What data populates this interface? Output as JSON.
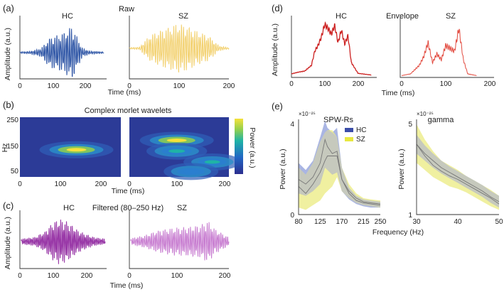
{
  "panel_labels": [
    "(a)",
    "(b)",
    "(c)",
    "(d)",
    "(e)"
  ],
  "colors": {
    "hc_raw": "#2f56a6",
    "sz_raw": "#f2cf6a",
    "hc_env": "#cc2020",
    "sz_env": "#e24a3f",
    "filtered": "#9a3aa8",
    "hc_band": "#9aa8de",
    "sz_band": "#ecec88",
    "overlap": "#c3c6c1",
    "mean_line": "#777777"
  },
  "chart_data": [
    {
      "id": "a",
      "type": "line",
      "title": "Raw",
      "ylabel": "Amplitude (a.u.)",
      "xlabel": "Time (ms)",
      "panels": [
        {
          "label": "HC",
          "xticks": [
            0,
            100,
            200
          ],
          "xlim": [
            0,
            250
          ],
          "series": [
            {
              "name": "HC",
              "color": "#2f56a6",
              "x": [
                0,
                30,
                60,
                75,
                90,
                110,
                130,
                150,
                165,
                180,
                200,
                240
              ],
              "amp": [
                0.03,
                0.05,
                0.15,
                0.4,
                0.6,
                0.65,
                0.8,
                1.0,
                0.55,
                0.15,
                0.06,
                0.03
              ]
            }
          ]
        },
        {
          "label": "SZ",
          "xticks": [
            0,
            100,
            200
          ],
          "xlim": [
            0,
            200
          ],
          "series": [
            {
              "name": "SZ",
              "color": "#f2cf6a",
              "x": [
                0,
                20,
                40,
                60,
                80,
                100,
                120,
                140,
                160,
                180,
                200
              ],
              "amp": [
                0.03,
                0.05,
                0.5,
                0.7,
                0.85,
                1.0,
                0.85,
                0.65,
                0.5,
                0.1,
                0.03
              ]
            }
          ]
        }
      ]
    },
    {
      "id": "b",
      "type": "heatmap",
      "title": "Complex morlet wavelets",
      "ylabel": "Hz",
      "xlabel": "Time (ms)",
      "colorbar_label": "Power (a.u.)",
      "panels": [
        {
          "xticks": [
            0,
            100,
            200
          ],
          "yticks": [
            50,
            150,
            250
          ],
          "xlim": [
            0,
            250
          ],
          "ylim": [
            30,
            250
          ],
          "peaks": [
            {
              "t": 140,
              "f": 130,
              "power": 1.0
            }
          ]
        },
        {
          "xticks": [
            0,
            100,
            200
          ],
          "xlim": [
            0,
            210
          ],
          "ylim": [
            30,
            250
          ],
          "peaks": [
            {
              "t": 100,
              "f": 165,
              "power": 1.0
            },
            {
              "t": 100,
              "f": 125,
              "power": 0.55
            },
            {
              "t": 175,
              "f": 85,
              "power": 0.45
            },
            {
              "t": 130,
              "f": 50,
              "power": 0.35
            }
          ]
        }
      ]
    },
    {
      "id": "c",
      "type": "line",
      "title": "Filtered (80–250 Hz)",
      "ylabel": "Amplitude (a.u.)",
      "xlabel": "Time (ms)",
      "panels": [
        {
          "label": "HC",
          "xticks": [
            0,
            100,
            200
          ],
          "xlim": [
            0,
            250
          ],
          "series": [
            {
              "name": "HC",
              "color": "#9a3aa8",
              "x": [
                0,
                40,
                70,
                90,
                110,
                130,
                150,
                170,
                190,
                220,
                250
              ],
              "amp": [
                0.12,
                0.2,
                0.45,
                0.8,
                1.0,
                0.95,
                0.75,
                0.5,
                0.35,
                0.18,
                0.12
              ]
            }
          ]
        },
        {
          "label": "SZ",
          "xticks": [
            0,
            100,
            200
          ],
          "xlim": [
            0,
            210
          ],
          "series": [
            {
              "name": "SZ",
              "color": "#c679cf",
              "x": [
                0,
                30,
                60,
                90,
                120,
                150,
                165,
                180,
                210
              ],
              "amp": [
                0.15,
                0.3,
                0.55,
                0.65,
                0.7,
                0.8,
                1.0,
                0.6,
                0.2
              ]
            }
          ]
        }
      ]
    },
    {
      "id": "d",
      "type": "line",
      "title": "Envelope",
      "ylabel": "Amplitude (a.u.)",
      "xlabel": "Time (ms)",
      "panels": [
        {
          "label": "HC",
          "xticks": [
            0,
            100,
            200
          ],
          "xlim": [
            0,
            250
          ],
          "series": [
            {
              "name": "HC",
              "color": "#cc2020",
              "x": [
                0,
                20,
                40,
                60,
                70,
                80,
                90,
                100,
                110,
                120,
                130,
                140,
                150,
                160,
                170,
                180,
                200,
                240
              ],
              "y": [
                0.05,
                0.08,
                0.1,
                0.2,
                0.45,
                0.55,
                0.7,
                0.92,
                0.85,
                0.75,
                0.9,
                0.6,
                0.82,
                0.58,
                0.72,
                0.25,
                0.06,
                0.03
              ]
            }
          ]
        },
        {
          "label": "SZ",
          "xticks": [
            0,
            100,
            200
          ],
          "xlim": [
            0,
            200
          ],
          "series": [
            {
              "name": "SZ",
              "color": "#e24a3f",
              "x": [
                0,
                20,
                40,
                50,
                60,
                70,
                80,
                90,
                100,
                110,
                120,
                130,
                140,
                150,
                170
              ],
              "y": [
                0.02,
                0.05,
                0.2,
                0.35,
                0.6,
                0.25,
                0.4,
                0.3,
                0.55,
                0.5,
                0.45,
                0.85,
                0.3,
                0.05,
                0.02
              ]
            }
          ]
        }
      ]
    },
    {
      "id": "e1",
      "type": "area",
      "title": "SPW-Rs",
      "xlabel": "Frequency (Hz)",
      "ylabel": "Power (a.u.)",
      "y_scale_label": "×10⁻²⁵",
      "xticks": [
        80,
        125,
        170,
        215,
        250
      ],
      "yticks": [
        0,
        4
      ],
      "xlim": [
        80,
        250
      ],
      "ylim": [
        0,
        4
      ],
      "legend": [
        "HC",
        "SZ"
      ],
      "legend_loc": "top-right",
      "series": [
        {
          "name": "HC",
          "color": "#3b4da8",
          "x": [
            80,
            95,
            110,
            125,
            135,
            140,
            150,
            160,
            170,
            185,
            200,
            215,
            230,
            250
          ],
          "mean": [
            1.5,
            1.3,
            1.6,
            2.2,
            3.2,
            2.9,
            2.6,
            2.7,
            1.5,
            0.9,
            0.6,
            0.5,
            0.45,
            0.4
          ],
          "lower": [
            0.9,
            0.8,
            1.0,
            1.3,
            2.0,
            1.9,
            1.7,
            1.8,
            1.0,
            0.65,
            0.45,
            0.35,
            0.3,
            0.3
          ],
          "upper": [
            2.2,
            1.9,
            2.3,
            3.3,
            4.0,
            3.7,
            3.5,
            3.7,
            2.0,
            1.15,
            0.8,
            0.65,
            0.6,
            0.55
          ]
        },
        {
          "name": "SZ",
          "color": "#e8e840",
          "x": [
            80,
            95,
            110,
            125,
            135,
            140,
            150,
            160,
            170,
            185,
            200,
            215,
            230,
            250
          ],
          "mean": [
            1.2,
            0.9,
            1.3,
            1.8,
            2.3,
            2.5,
            2.5,
            2.5,
            1.5,
            1.0,
            0.7,
            0.55,
            0.5,
            0.45
          ],
          "lower": [
            0.3,
            0.2,
            0.4,
            0.6,
            0.9,
            1.0,
            1.2,
            1.6,
            1.0,
            0.7,
            0.5,
            0.4,
            0.35,
            0.3
          ],
          "upper": [
            2.0,
            1.7,
            2.2,
            3.1,
            3.5,
            3.6,
            3.6,
            3.3,
            2.0,
            1.3,
            0.9,
            0.7,
            0.65,
            0.6
          ]
        }
      ]
    },
    {
      "id": "e2",
      "type": "area",
      "title": "gamma",
      "xlabel": "Frequency (Hz)",
      "ylabel": "Power (a.u.)",
      "y_scale_label": "×10⁻²⁵",
      "xticks": [
        30,
        40,
        50
      ],
      "yticks": [
        1,
        5
      ],
      "xlim": [
        30,
        50
      ],
      "ylim": [
        1,
        5
      ],
      "series": [
        {
          "name": "HC",
          "color": "#3b4da8",
          "x": [
            30,
            32,
            34,
            36,
            38,
            40,
            42,
            44,
            46,
            48,
            50
          ],
          "mean": [
            4.0,
            3.6,
            3.3,
            3.0,
            2.8,
            2.6,
            2.4,
            2.2,
            2.0,
            1.75,
            1.55
          ],
          "lower": [
            3.6,
            3.3,
            3.0,
            2.75,
            2.55,
            2.35,
            2.15,
            1.95,
            1.75,
            1.5,
            1.3
          ],
          "upper": [
            4.4,
            3.95,
            3.6,
            3.3,
            3.05,
            2.85,
            2.65,
            2.45,
            2.25,
            2.0,
            1.8
          ]
        },
        {
          "name": "SZ",
          "color": "#e8e840",
          "x": [
            30,
            32,
            34,
            36,
            38,
            40,
            42,
            44,
            46,
            48,
            50
          ],
          "mean": [
            4.0,
            3.5,
            3.1,
            2.85,
            2.65,
            2.5,
            2.3,
            2.1,
            1.9,
            1.7,
            1.45
          ],
          "lower": [
            3.2,
            2.9,
            2.6,
            2.4,
            2.2,
            2.1,
            1.95,
            1.75,
            1.55,
            1.35,
            1.2
          ],
          "upper": [
            4.85,
            4.2,
            3.7,
            3.3,
            3.1,
            2.9,
            2.65,
            2.45,
            2.25,
            2.05,
            1.8
          ]
        }
      ]
    }
  ]
}
